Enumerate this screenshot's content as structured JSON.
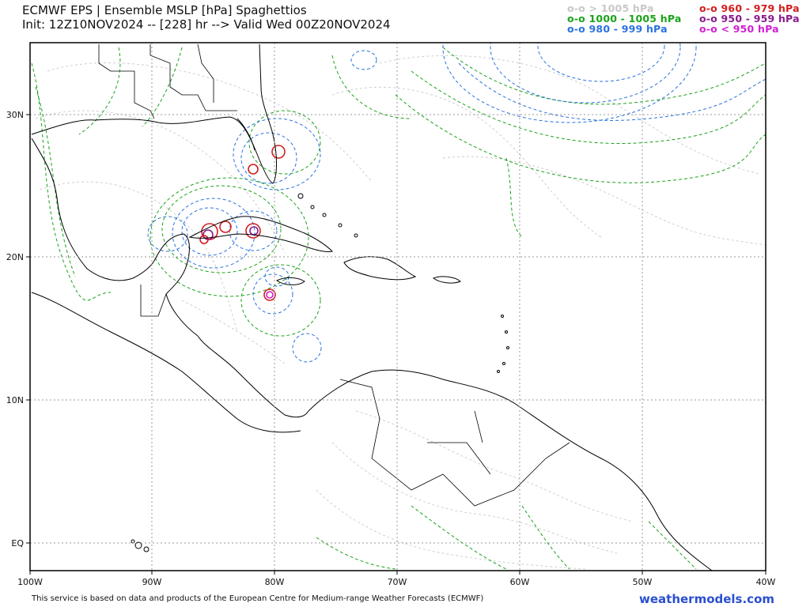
{
  "header": {
    "title_line1": "ECMWF EPS | Ensemble MSLP [hPa] Spaghettios",
    "title_line2": "Init: 12Z10NOV2024 -- [228] hr --> Valid Wed 00Z20NOV2024"
  },
  "legend": {
    "gt1005": {
      "marker": "o-o",
      "label": "> 1005 hPa",
      "color": "#c8c8c8"
    },
    "r1000_1005": {
      "marker": "o-o",
      "label": "1000 - 1005 hPa",
      "color": "#1aa31a"
    },
    "r980_999": {
      "marker": "o-o",
      "label": "980 - 999 hPa",
      "color": "#2a72e0"
    },
    "r960_979": {
      "marker": "o-o",
      "label": "960 - 979 hPa",
      "color": "#d21e1e"
    },
    "r950_959": {
      "marker": "o-o",
      "label": "950 - 959 hPa",
      "color": "#8a1a8a"
    },
    "lt950": {
      "marker": "o-o",
      "label": "< 950 hPa",
      "color": "#d21ed2"
    }
  },
  "axes": {
    "lon_labels": [
      "100W",
      "90W",
      "80W",
      "70W",
      "60W",
      "50W",
      "40W"
    ],
    "lat_labels": [
      "30N",
      "20N",
      "10N",
      "EQ"
    ]
  },
  "footer": {
    "credit": "This service is based on data and products of the European Centre for Medium-range Weather Forecasts (ECMWF)",
    "site": "weathermodels.com"
  }
}
